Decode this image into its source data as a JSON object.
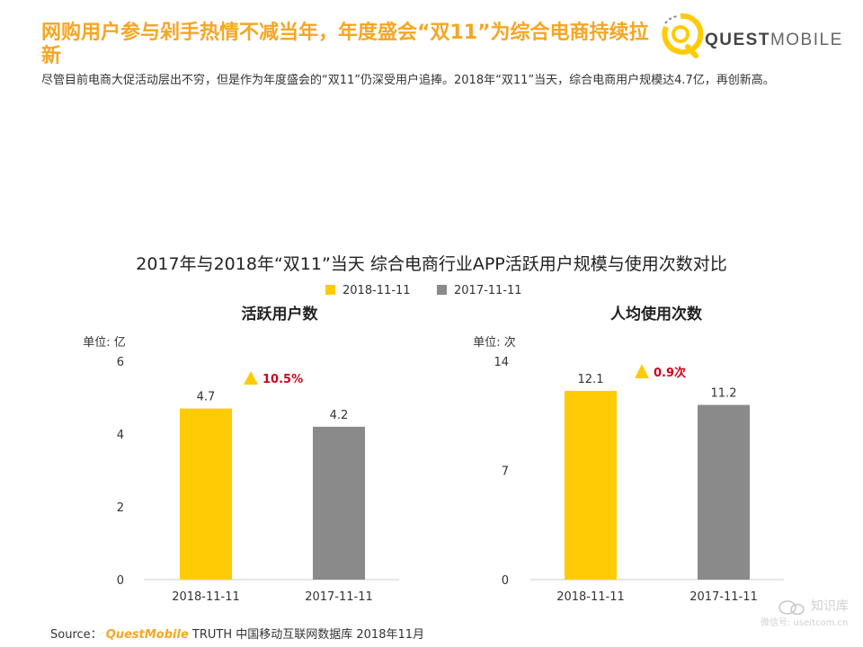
{
  "headline": "网购用户参与剁手热情不减当年，年度盛会“双11”为综合电商持续拉新",
  "subtitle": "尽管目前电商大促活动层出不穷，但是作为年度盛会的“双11”仍深受用户追捧。2018年“双11”当天，综合电商用户规模达4.7亿，再创新高。",
  "logo": {
    "bold": "QUEST",
    "light": "MOBILE"
  },
  "colors": {
    "accent": "#f5a623",
    "series_2018": "#ffcb05",
    "series_2017": "#8a8a8a",
    "growth": "#d0021b"
  },
  "chart_title": "2017年与2018年“双11”当天 综合电商行业APP活跃用户规模与使用次数对比",
  "legend": [
    "2018-11-11",
    "2017-11-11"
  ],
  "chart_data": [
    {
      "type": "bar",
      "title": "活跃用户数",
      "unit_label": "单位: 亿",
      "categories": [
        "2018-11-11",
        "2017-11-11"
      ],
      "values": [
        4.7,
        4.2
      ],
      "value_labels": [
        "4.7",
        "4.2"
      ],
      "yticks": [
        0,
        2,
        4,
        6
      ],
      "ytick_labels": [
        "0",
        "2",
        "4",
        "6"
      ],
      "ylim": [
        0,
        6
      ],
      "growth_label": "10.5%"
    },
    {
      "type": "bar",
      "title": "人均使用次数",
      "unit_label": "单位: 次",
      "categories": [
        "2018-11-11",
        "2017-11-11"
      ],
      "values": [
        12.1,
        11.2
      ],
      "value_labels": [
        "12.1",
        "11.2"
      ],
      "yticks": [
        0,
        7,
        14
      ],
      "ytick_labels": [
        "0",
        "7",
        "14"
      ],
      "ylim": [
        0,
        14
      ],
      "growth_label": "0.9次"
    }
  ],
  "source": {
    "prefix": "Source：",
    "brand": "QuestMobile",
    "rest": "TRUTH 中国移动互联网数据库 2018年11月"
  },
  "watermark": {
    "name": "知识库",
    "sub": "微信号: useitcom.cn"
  }
}
